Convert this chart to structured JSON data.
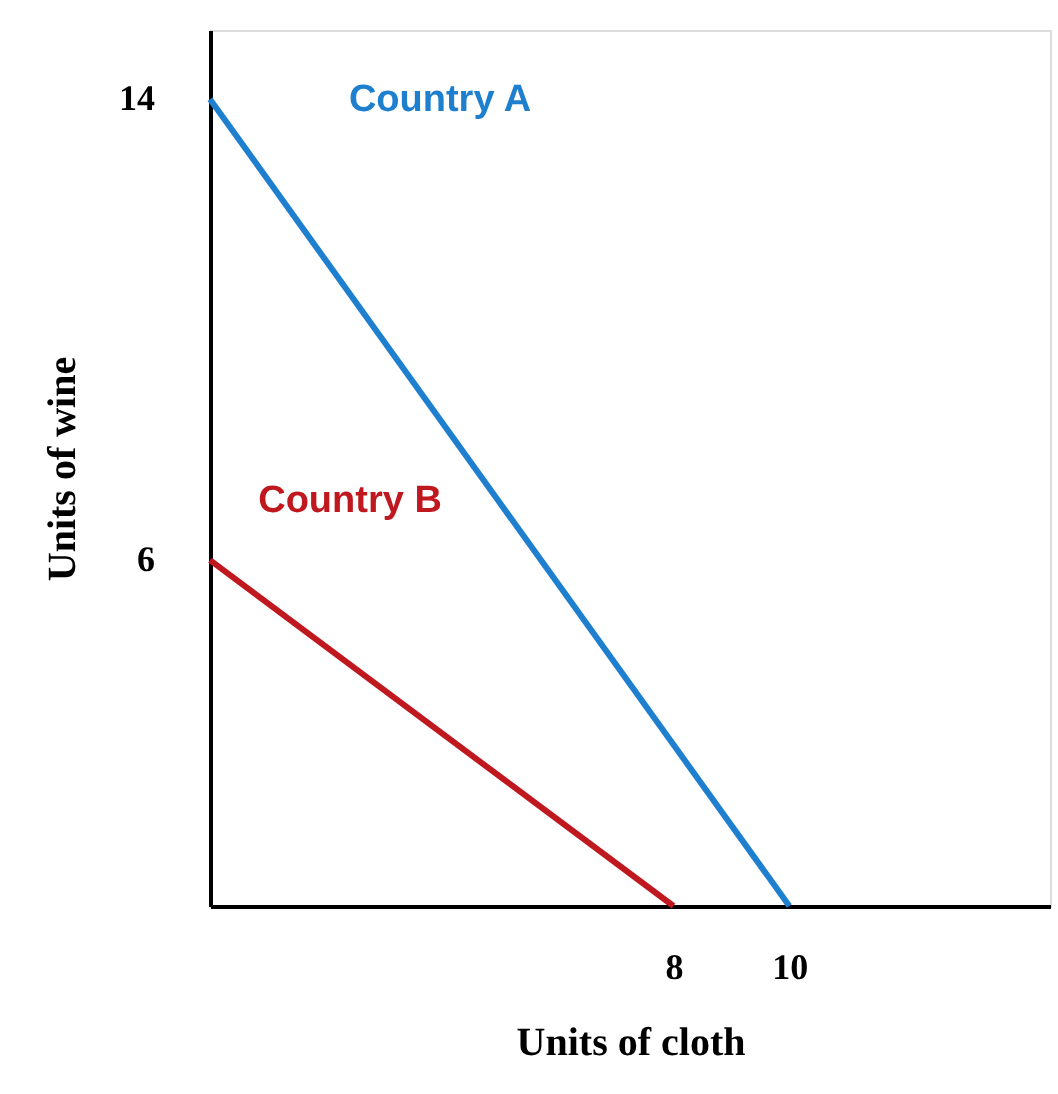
{
  "chart_data": {
    "type": "line",
    "xlabel": "Units of cloth",
    "ylabel": "Units of wine",
    "series": [
      {
        "name": "Country A",
        "color": "#1f7fcf",
        "x": [
          0,
          10
        ],
        "values": [
          14,
          0
        ]
      },
      {
        "name": "Country B",
        "color": "#c0181f",
        "x": [
          0,
          8
        ],
        "values": [
          6,
          0
        ]
      }
    ],
    "xlim": [
      0,
      14.5
    ],
    "ylim": [
      0,
      15.2
    ],
    "xticks": [
      8,
      10
    ],
    "yticks": [
      6,
      14
    ],
    "grid": false,
    "marker": "none",
    "line_style": "solid"
  }
}
